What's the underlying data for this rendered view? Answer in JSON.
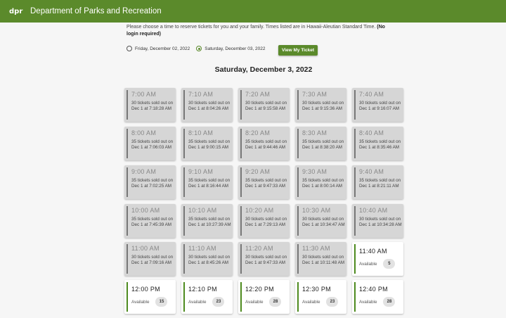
{
  "header": {
    "logo": "dpr",
    "title": "Department of Parks and Recreation"
  },
  "intro": {
    "text": "Please choose a time to reserve tickets for you and your family. Times listed are in Hawaii-Aleutian Standard Time. ",
    "bold": "(No login required)"
  },
  "dates": [
    {
      "label": "Friday, December 02, 2022",
      "selected": false
    },
    {
      "label": "Saturday, December 03, 2022",
      "selected": true
    }
  ],
  "view_ticket_label": "View My Ticket",
  "selected_date_heading": "Saturday, December 3, 2022",
  "available_label": "Available",
  "colors": {
    "brand": "#5b8a2b",
    "sold": "#d6d6d6"
  },
  "slots": [
    {
      "time": "7:00 AM",
      "info": "30 tickets sold out on Dec 1 at 7:18:28 AM"
    },
    {
      "time": "7:10 AM",
      "info": "30 tickets sold out on Dec 1 at 8:04:26 AM"
    },
    {
      "time": "7:20 AM",
      "info": "30 tickets sold out on Dec 1 at 9:15:58 AM"
    },
    {
      "time": "7:30 AM",
      "info": "30 tickets sold out on Dec 1 at 9:15:36 AM"
    },
    {
      "time": "7:40 AM",
      "info": "30 tickets sold out on Dec 1 at 9:16:07 AM"
    },
    {
      "time": "8:00 AM",
      "info": "35 tickets sold out on Dec 1 at 7:06:03 AM"
    },
    {
      "time": "8:10 AM",
      "info": "35 tickets sold out on Dec 1 at 9:00:15 AM"
    },
    {
      "time": "8:20 AM",
      "info": "35 tickets sold out on Dec 1 at 9:44:46 AM"
    },
    {
      "time": "8:30 AM",
      "info": "35 tickets sold out on Dec 1 at 8:38:20 AM"
    },
    {
      "time": "8:40 AM",
      "info": "35 tickets sold out on Dec 1 at 8:35:46 AM"
    },
    {
      "time": "9:00 AM",
      "info": "35 tickets sold out on Dec 1 at 7:02:25 AM"
    },
    {
      "time": "9:10 AM",
      "info": "35 tickets sold out on Dec 1 at 8:16:44 AM"
    },
    {
      "time": "9:20 AM",
      "info": "35 tickets sold out on Dec 1 at 9:47:33 AM"
    },
    {
      "time": "9:30 AM",
      "info": "35 tickets sold out on Dec 1 at 8:00:14 AM"
    },
    {
      "time": "9:40 AM",
      "info": "35 tickets sold out on Dec 1 at 8:21:11 AM"
    },
    {
      "time": "10:00 AM",
      "info": "35 tickets sold out on Dec 1 at 7:45:39 AM"
    },
    {
      "time": "10:10 AM",
      "info": "35 tickets sold out on Dec 1 at 10:27:39 AM"
    },
    {
      "time": "10:20 AM",
      "info": "30 tickets sold out on Dec 1 at 7:29:13 AM"
    },
    {
      "time": "10:30 AM",
      "info": "30 tickets sold out on Dec 1 at 10:34:47 AM"
    },
    {
      "time": "10:40 AM",
      "info": "30 tickets sold out on Dec 1 at 10:34:28 AM"
    },
    {
      "time": "11:00 AM",
      "info": "30 tickets sold out on Dec 1 at 7:09:16 AM"
    },
    {
      "time": "11:10 AM",
      "info": "30 tickets sold out on Dec 1 at 8:45:26 AM"
    },
    {
      "time": "11:20 AM",
      "info": "30 tickets sold out on Dec 1 at 9:47:33 AM"
    },
    {
      "time": "11:30 AM",
      "info": "30 tickets sold out on Dec 1 at 10:11:48 AM"
    },
    {
      "time": "11:40 AM",
      "available": "5"
    },
    {
      "time": "12:00 PM",
      "available": "15"
    },
    {
      "time": "12:10 PM",
      "available": "23"
    },
    {
      "time": "12:20 PM",
      "available": "28"
    },
    {
      "time": "12:30 PM",
      "available": "23"
    },
    {
      "time": "12:40 PM",
      "available": "28"
    }
  ]
}
